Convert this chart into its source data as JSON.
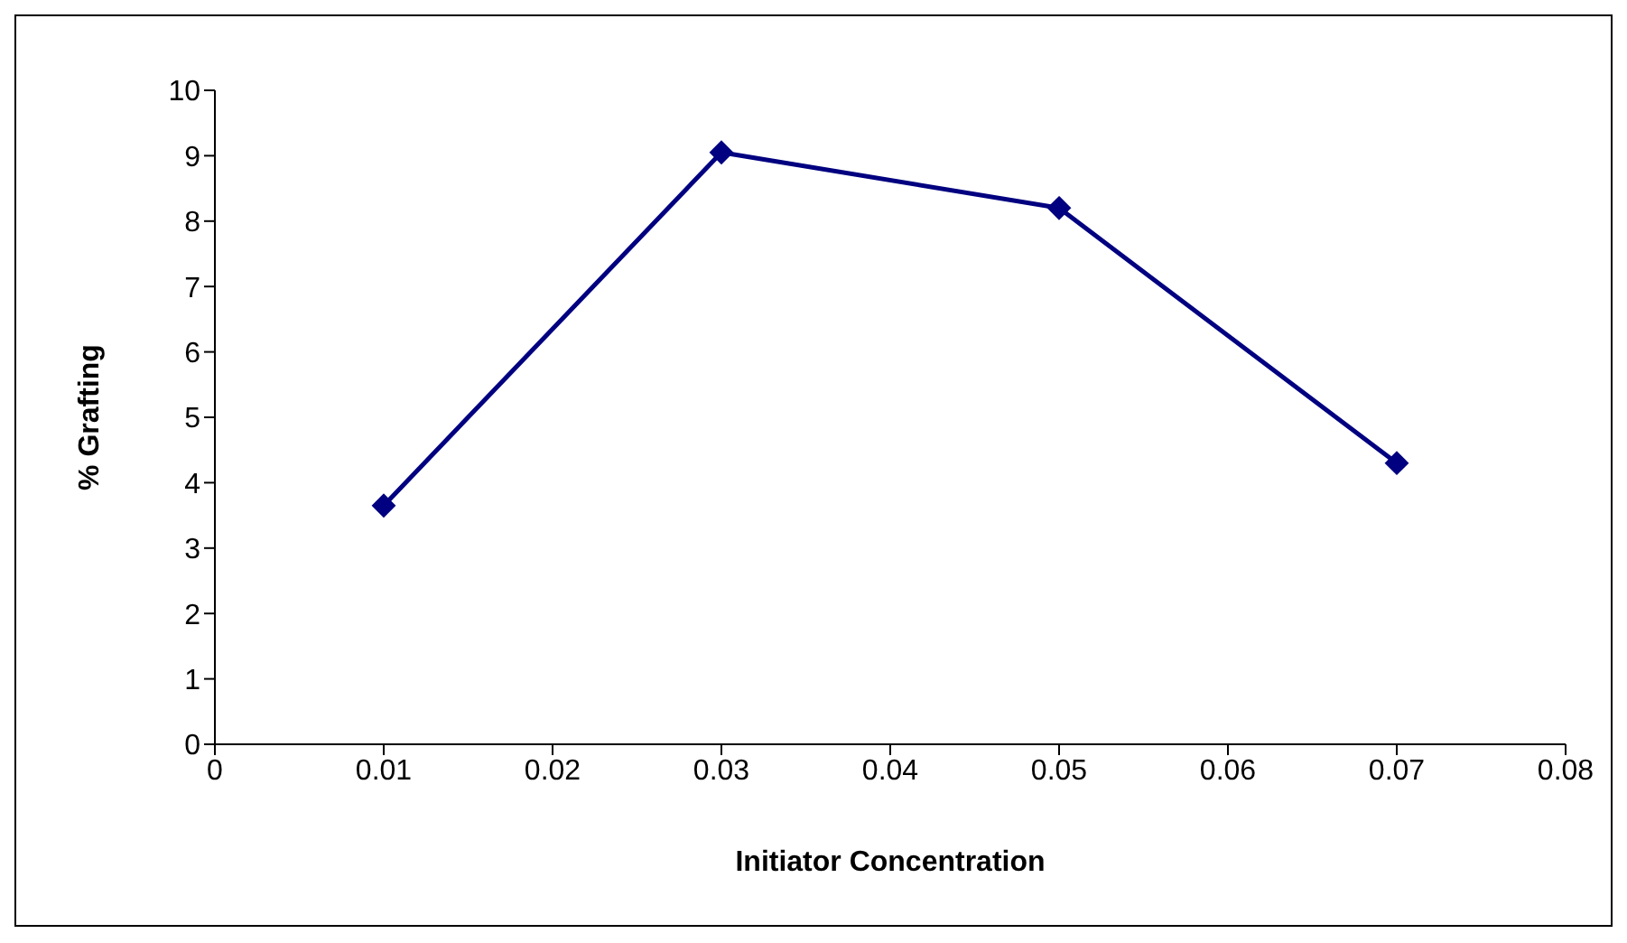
{
  "chart_data": {
    "type": "line",
    "xlabel": "Initiator Concentration",
    "ylabel": "% Grafting",
    "x": [
      0.01,
      0.03,
      0.05,
      0.07
    ],
    "series": [
      {
        "color": "#000080",
        "values": [
          3.65,
          9.05,
          8.2,
          4.3
        ]
      }
    ],
    "xlim": [
      0,
      0.08
    ],
    "xticks": [
      0,
      0.01,
      0.02,
      0.03,
      0.04,
      0.05,
      0.06,
      0.07,
      0.08
    ],
    "ylim": [
      0,
      10
    ],
    "yticks": [
      0,
      1,
      2,
      3,
      4,
      5,
      6,
      7,
      8,
      9,
      10
    ],
    "grid": false,
    "legend": false,
    "marker": "diamond",
    "line_style": "solid"
  }
}
